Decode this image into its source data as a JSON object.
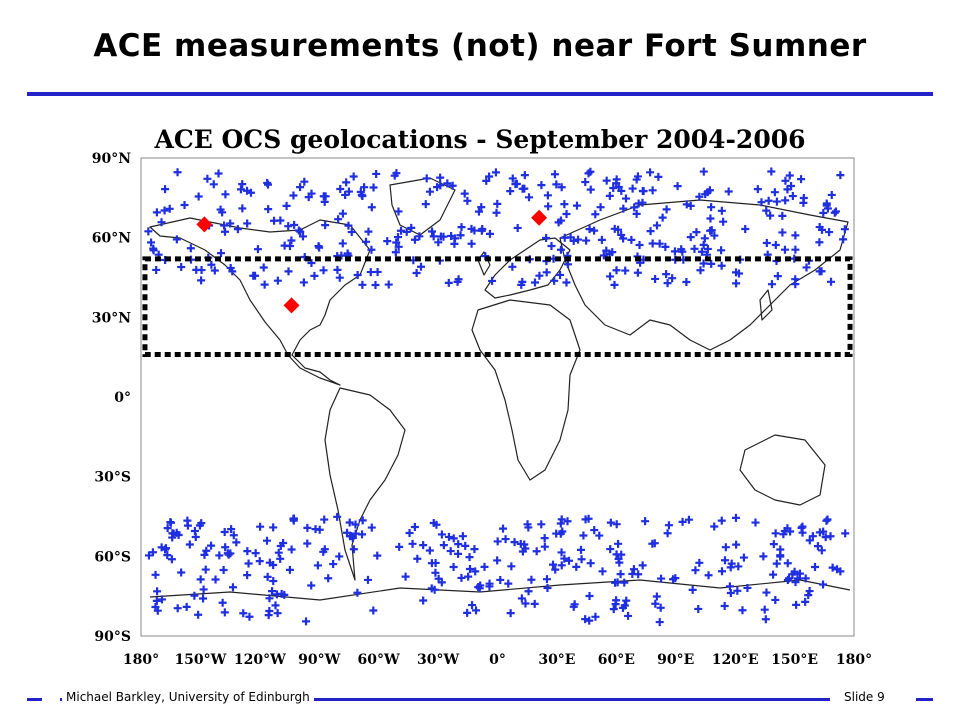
{
  "slide": {
    "title": "ACE measurements (not) near Fort Sumner",
    "footer_author": "Michael Barkley, University of Edinburgh",
    "footer_slide": "Slide 9"
  },
  "colors": {
    "accent": "#2323c9",
    "plus_marker": "#1f2fe0",
    "site_marker": "#ff0000",
    "box": "#000000"
  },
  "chart_data": {
    "type": "scatter",
    "title": "ACE OCS geolocations - September 2004-2006",
    "xlabel": "",
    "ylabel": "",
    "xlim": [
      -180,
      180
    ],
    "ylim": [
      -90,
      90
    ],
    "xticks": [
      {
        "value": -180,
        "label": "180°"
      },
      {
        "value": -150,
        "label": "150°W"
      },
      {
        "value": -120,
        "label": "120°W"
      },
      {
        "value": -90,
        "label": "90°W"
      },
      {
        "value": -60,
        "label": "60°W"
      },
      {
        "value": -30,
        "label": "30°W"
      },
      {
        "value": 0,
        "label": "0°"
      },
      {
        "value": 30,
        "label": "30°E"
      },
      {
        "value": 60,
        "label": "60°E"
      },
      {
        "value": 90,
        "label": "90°E"
      },
      {
        "value": 120,
        "label": "120°E"
      },
      {
        "value": 150,
        "label": "150°E"
      },
      {
        "value": 180,
        "label": "180°"
      }
    ],
    "yticks": [
      {
        "value": 90,
        "label": "90°N"
      },
      {
        "value": 60,
        "label": "60°N"
      },
      {
        "value": 30,
        "label": "30°N"
      },
      {
        "value": 0,
        "label": "0°"
      },
      {
        "value": -30,
        "label": "30°S"
      },
      {
        "value": -60,
        "label": "60°S"
      },
      {
        "value": -90,
        "label": "90°S"
      }
    ],
    "grid": false,
    "series": [
      {
        "marker": "plus",
        "color": "#1f2fe0",
        "bands": [
          {
            "lat_range": [
              42,
              85
            ],
            "count": 360
          },
          {
            "lat_range": [
              -85,
              -45
            ],
            "count": 320
          }
        ]
      },
      {
        "marker": "diamond",
        "color": "#ff0000",
        "points": [
          {
            "lon": -148,
            "lat": 65
          },
          {
            "lon": -104,
            "lat": 34.5
          },
          {
            "lon": 21,
            "lat": 67.5
          }
        ]
      }
    ],
    "highlight_box": {
      "lon_range": [
        -178,
        178
      ],
      "lat_range": [
        16,
        52
      ]
    }
  }
}
